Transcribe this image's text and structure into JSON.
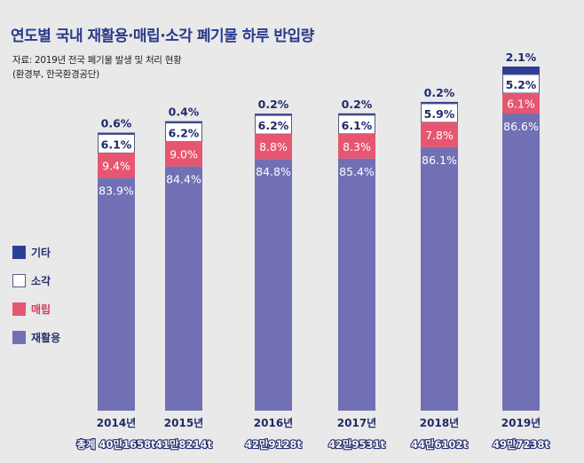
{
  "title": "연도별 국내 재활용·매립·소각 폐기물 하루 반입량",
  "source_line1": "자료: 2019년 전국 폐기물 발생 및 처리 현황",
  "source_line2": "(환경부, 한국환경공단)",
  "colors": {
    "etc": "#2d3e94",
    "incineration": "#ffffff",
    "landfill": "#e75670",
    "recycling": "#7270b4",
    "text_dark": "#1f2a6b"
  },
  "legend": [
    {
      "label": "기타",
      "key": "etc"
    },
    {
      "label": "소각",
      "key": "incineration"
    },
    {
      "label": "매립",
      "key": "landfill"
    },
    {
      "label": "재활용",
      "key": "recycling"
    }
  ],
  "chart_data": {
    "type": "bar",
    "stacked": true,
    "title": "연도별 국내 재활용·매립·소각 폐기물 하루 반입량",
    "categories": [
      "2014년",
      "2015년",
      "2016년",
      "2017년",
      "2018년",
      "2019년"
    ],
    "totals_label": [
      "총계 40만1658t",
      "41만8214t",
      "42만9128t",
      "42만9531t",
      "44만6102t",
      "49만7238t"
    ],
    "totals_t": [
      401658,
      418214,
      429128,
      429531,
      446102,
      497238
    ],
    "series": [
      {
        "name": "재활용",
        "values": [
          83.9,
          84.4,
          84.8,
          85.4,
          86.1,
          86.6
        ]
      },
      {
        "name": "매립",
        "values": [
          9.4,
          9.0,
          8.8,
          8.3,
          7.8,
          6.1
        ]
      },
      {
        "name": "소각",
        "values": [
          6.1,
          6.2,
          6.2,
          6.1,
          5.9,
          5.2
        ]
      },
      {
        "name": "기타",
        "values": [
          0.6,
          0.4,
          0.2,
          0.2,
          0.2,
          2.1
        ]
      }
    ],
    "unit": "%",
    "legend_position": "left"
  }
}
